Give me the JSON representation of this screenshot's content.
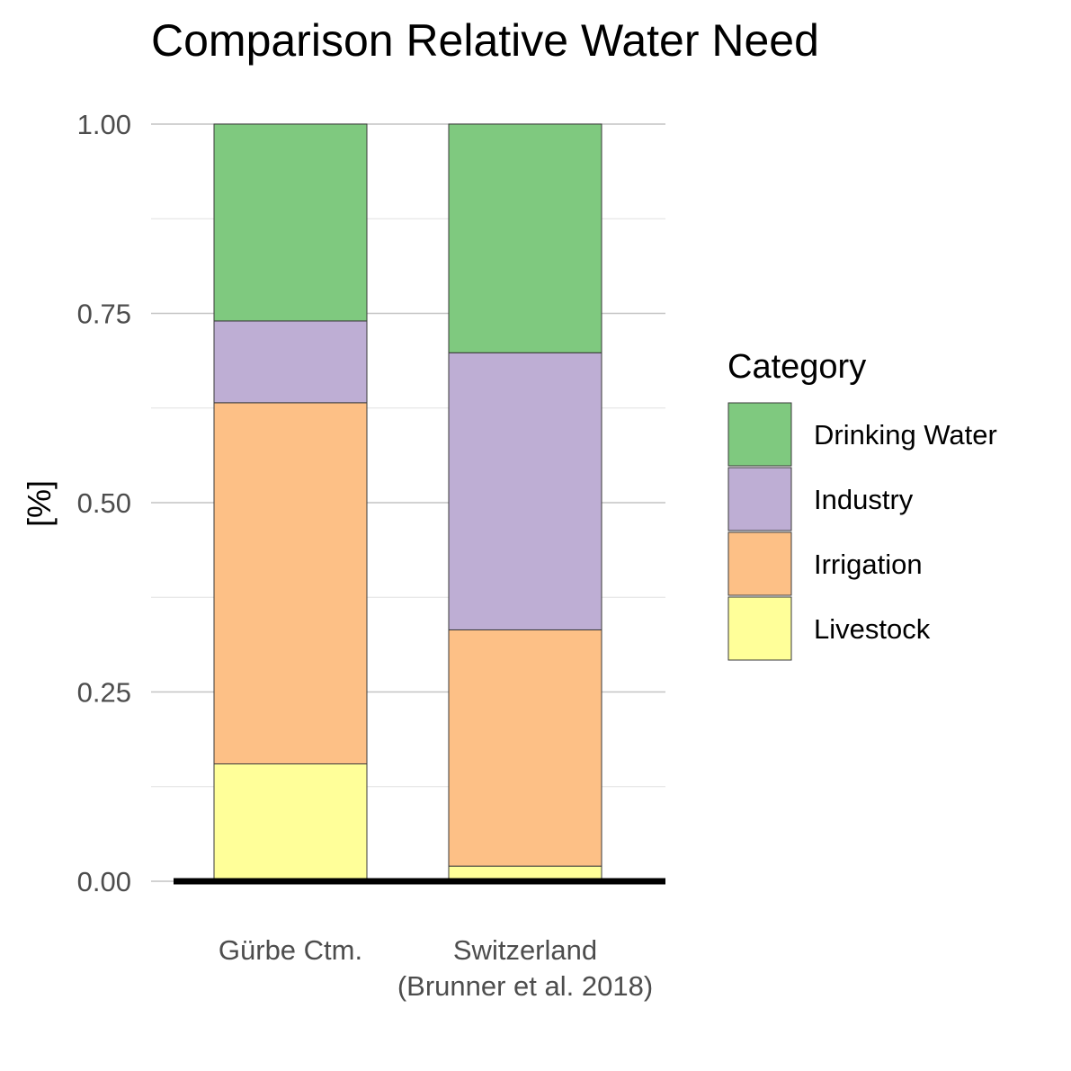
{
  "chart_data": {
    "type": "bar",
    "stacked": true,
    "title": "Comparison Relative Water Need",
    "xlabel": "",
    "ylabel": "[%]",
    "ylim": [
      0,
      1
    ],
    "yticks": [
      "0.00",
      "0.25",
      "0.50",
      "0.75",
      "1.00"
    ],
    "grid": true,
    "categories": [
      [
        "Gürbe Ctm."
      ],
      [
        "Switzerland",
        "(Brunner et al. 2018)"
      ]
    ],
    "series": [
      {
        "name": "Livestock",
        "color": "#FFFF99",
        "values": [
          0.155,
          0.02
        ]
      },
      {
        "name": "Irrigation",
        "color": "#FDC086",
        "values": [
          0.477,
          0.312
        ]
      },
      {
        "name": "Industry",
        "color": "#BEAED4",
        "values": [
          0.108,
          0.366
        ]
      },
      {
        "name": "Drinking Water",
        "color": "#7FC97F",
        "values": [
          0.26,
          0.302
        ]
      }
    ],
    "legend": {
      "title": "Category",
      "position": "right",
      "order": [
        "Drinking Water",
        "Industry",
        "Irrigation",
        "Livestock"
      ]
    }
  }
}
